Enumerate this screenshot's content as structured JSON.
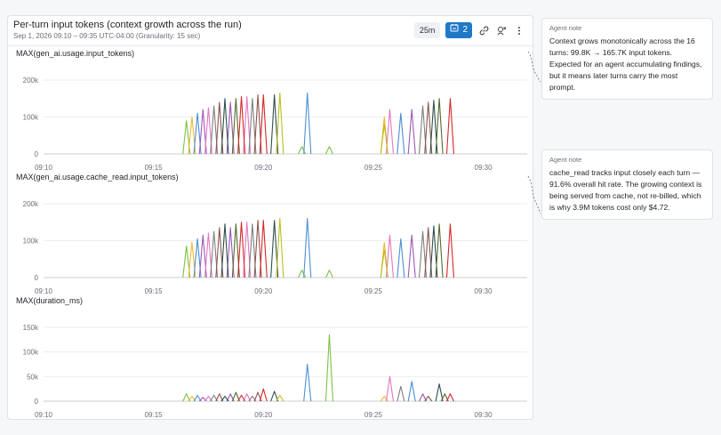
{
  "panel": {
    "title": "Per-turn input tokens (context growth across the run)",
    "subtitle": "Sep 1, 2026 09:10 – 09:35 UTC-04:00 (Granularity: 15 sec)",
    "time_range": "25m",
    "alert_count": "2",
    "icons": [
      "alarm-icon",
      "link-icon",
      "share-icon",
      "more-vertical-icon"
    ]
  },
  "notes": [
    {
      "heading": "Agent note",
      "body": "Context grows monotonically across the 16 turns: 99.8K → 165.7K input tokens. Expected for an agent accumulating findings, but it means later turns carry the most prompt."
    },
    {
      "heading": "Agent note",
      "body": "cache_read tracks input closely each turn — 91.6% overall hit rate. The growing context is being served from cache, not re-billed, which is why 3.9M tokens cost only $4.72."
    }
  ],
  "chart_data": [
    {
      "type": "line",
      "title": "MAX(gen_ai.usage.input_tokens)",
      "x_ticks": [
        "09:10",
        "09:15",
        "09:20",
        "09:25",
        "09:30"
      ],
      "y_ticks": [
        "200k",
        "100k",
        "0"
      ],
      "ylim": [
        0,
        200000
      ],
      "xlim": [
        "09:10",
        "09:32"
      ],
      "series": [
        {
          "color": "#7cc242",
          "points": [
            [
              "09:16:30",
              90000
            ],
            [
              "09:21:45",
              20000
            ],
            [
              "09:23:00",
              20000
            ]
          ]
        },
        {
          "color": "#f2b731",
          "points": [
            [
              "09:16:45",
              100000
            ],
            [
              "09:25:30",
              100000
            ]
          ]
        },
        {
          "color": "#4a8fd4",
          "points": [
            [
              "09:17:00",
              110000
            ],
            [
              "09:22:00",
              165000
            ],
            [
              "09:26:15",
              110000
            ]
          ]
        },
        {
          "color": "#9b59b6",
          "points": [
            [
              "09:17:15",
              120000
            ],
            [
              "09:18:30",
              140000
            ],
            [
              "09:26:45",
              120000
            ]
          ]
        },
        {
          "color": "#e377c2",
          "points": [
            [
              "09:17:30",
              125000
            ],
            [
              "09:19:15",
              155000
            ],
            [
              "09:25:45",
              120000
            ]
          ]
        },
        {
          "color": "#7f7f7f",
          "points": [
            [
              "09:17:45",
              130000
            ],
            [
              "09:19:30",
              150000
            ],
            [
              "09:27:15",
              130000
            ]
          ]
        },
        {
          "color": "#8c564b",
          "points": [
            [
              "09:18:00",
              140000
            ],
            [
              "09:19:45",
              160000
            ],
            [
              "09:27:30",
              140000
            ]
          ]
        },
        {
          "color": "#2f4f4f",
          "points": [
            [
              "09:18:15",
              150000
            ],
            [
              "09:20:30",
              160000
            ],
            [
              "09:27:45",
              145000
            ]
          ]
        },
        {
          "color": "#556b2f",
          "points": [
            [
              "09:18:45",
              150000
            ],
            [
              "09:28:00",
              150000
            ]
          ]
        },
        {
          "color": "#d62728",
          "points": [
            [
              "09:19:00",
              155000
            ],
            [
              "09:20:00",
              160000
            ],
            [
              "09:28:30",
              150000
            ]
          ]
        },
        {
          "color": "#bcbd22",
          "points": [
            [
              "09:20:45",
              165000
            ],
            [
              "09:25:30",
              80000
            ]
          ]
        }
      ]
    },
    {
      "type": "line",
      "title": "MAX(gen_ai.usage.cache_read.input_tokens)",
      "x_ticks": [
        "09:10",
        "09:15",
        "09:20",
        "09:25",
        "09:30"
      ],
      "y_ticks": [
        "200k",
        "100k",
        "0"
      ],
      "ylim": [
        0,
        200000
      ],
      "xlim": [
        "09:10",
        "09:32"
      ],
      "series": [
        {
          "color": "#7cc242",
          "points": [
            [
              "09:16:30",
              85000
            ],
            [
              "09:21:45",
              20000
            ],
            [
              "09:23:00",
              20000
            ]
          ]
        },
        {
          "color": "#f2b731",
          "points": [
            [
              "09:16:45",
              95000
            ],
            [
              "09:25:30",
              95000
            ]
          ]
        },
        {
          "color": "#4a8fd4",
          "points": [
            [
              "09:17:00",
              105000
            ],
            [
              "09:22:00",
              160000
            ],
            [
              "09:26:15",
              105000
            ]
          ]
        },
        {
          "color": "#9b59b6",
          "points": [
            [
              "09:17:15",
              115000
            ],
            [
              "09:18:30",
              135000
            ],
            [
              "09:26:45",
              115000
            ]
          ]
        },
        {
          "color": "#e377c2",
          "points": [
            [
              "09:17:30",
              120000
            ],
            [
              "09:19:15",
              150000
            ],
            [
              "09:25:45",
              115000
            ]
          ]
        },
        {
          "color": "#7f7f7f",
          "points": [
            [
              "09:17:45",
              125000
            ],
            [
              "09:19:30",
              145000
            ],
            [
              "09:27:15",
              125000
            ]
          ]
        },
        {
          "color": "#8c564b",
          "points": [
            [
              "09:18:00",
              135000
            ],
            [
              "09:19:45",
              155000
            ],
            [
              "09:27:30",
              135000
            ]
          ]
        },
        {
          "color": "#2f4f4f",
          "points": [
            [
              "09:18:15",
              145000
            ],
            [
              "09:20:30",
              155000
            ],
            [
              "09:27:45",
              140000
            ]
          ]
        },
        {
          "color": "#556b2f",
          "points": [
            [
              "09:18:45",
              145000
            ],
            [
              "09:28:00",
              145000
            ]
          ]
        },
        {
          "color": "#d62728",
          "points": [
            [
              "09:19:00",
              150000
            ],
            [
              "09:20:00",
              155000
            ],
            [
              "09:28:30",
              145000
            ]
          ]
        },
        {
          "color": "#bcbd22",
          "points": [
            [
              "09:20:45",
              160000
            ],
            [
              "09:25:30",
              75000
            ]
          ]
        }
      ]
    },
    {
      "type": "line",
      "title": "MAX(duration_ms)",
      "x_ticks": [
        "09:10",
        "09:15",
        "09:20",
        "09:25",
        "09:30"
      ],
      "y_ticks": [
        "150k",
        "100k",
        "50k",
        "0"
      ],
      "ylim": [
        0,
        150000
      ],
      "xlim": [
        "09:10",
        "09:32"
      ],
      "series": [
        {
          "color": "#7cc242",
          "points": [
            [
              "09:16:30",
              15000
            ],
            [
              "09:23:00",
              135000
            ]
          ]
        },
        {
          "color": "#f2b731",
          "points": [
            [
              "09:16:45",
              10000
            ],
            [
              "09:25:30",
              10000
            ]
          ]
        },
        {
          "color": "#4a8fd4",
          "points": [
            [
              "09:17:00",
              12000
            ],
            [
              "09:22:00",
              75000
            ],
            [
              "09:26:45",
              40000
            ]
          ]
        },
        {
          "color": "#9b59b6",
          "points": [
            [
              "09:17:15",
              8000
            ],
            [
              "09:18:30",
              15000
            ],
            [
              "09:27:15",
              15000
            ]
          ]
        },
        {
          "color": "#e377c2",
          "points": [
            [
              "09:17:30",
              10000
            ],
            [
              "09:19:15",
              15000
            ],
            [
              "09:25:45",
              50000
            ]
          ]
        },
        {
          "color": "#7f7f7f",
          "points": [
            [
              "09:17:45",
              12000
            ],
            [
              "09:19:30",
              10000
            ],
            [
              "09:26:15",
              30000
            ]
          ]
        },
        {
          "color": "#8c564b",
          "points": [
            [
              "09:18:00",
              15000
            ],
            [
              "09:19:45",
              18000
            ],
            [
              "09:27:30",
              10000
            ]
          ]
        },
        {
          "color": "#2f4f4f",
          "points": [
            [
              "09:18:15",
              10000
            ],
            [
              "09:20:30",
              20000
            ],
            [
              "09:28:00",
              35000
            ]
          ]
        },
        {
          "color": "#556b2f",
          "points": [
            [
              "09:18:45",
              18000
            ],
            [
              "09:28:15",
              15000
            ]
          ]
        },
        {
          "color": "#d62728",
          "points": [
            [
              "09:19:00",
              12000
            ],
            [
              "09:20:00",
              25000
            ],
            [
              "09:28:30",
              15000
            ]
          ]
        },
        {
          "color": "#bcbd22",
          "points": [
            [
              "09:20:45",
              12000
            ]
          ]
        }
      ]
    }
  ]
}
